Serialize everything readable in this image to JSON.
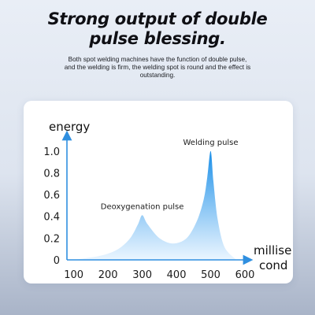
{
  "header": {
    "title_line1": "Strong output of double",
    "title_line2": "pulse blessing.",
    "subtitle_line1": "Both spot welding machines have the function of double pulse,",
    "subtitle_line2": "and the welding is firm, the welding spot is round and the effect is",
    "subtitle_line3": "outstanding."
  },
  "chart_data": {
    "type": "area",
    "ylabel": "energy",
    "xlabel_line1": "millise",
    "xlabel_line2": "cond",
    "x_ticks": [
      "100",
      "200",
      "300",
      "400",
      "500",
      "600"
    ],
    "y_ticks": [
      "0",
      "0.2",
      "0.4",
      "0.6",
      "0.8",
      "1.0"
    ],
    "xlim": [
      80,
      600
    ],
    "ylim": [
      0,
      1.1
    ],
    "grid": false,
    "fill_colors": [
      "#1a8fe8",
      "#e8f4ff"
    ],
    "axis_color": "#2f8fe0",
    "series": [
      {
        "x": [
          100,
          180,
          230,
          265,
          288,
          300,
          315,
          350,
          390,
          430,
          460,
          480,
          490,
          500,
          508,
          520,
          540,
          575
        ],
        "y": [
          0,
          0.04,
          0.1,
          0.2,
          0.33,
          0.41,
          0.33,
          0.2,
          0.15,
          0.2,
          0.36,
          0.56,
          0.76,
          1.0,
          0.72,
          0.38,
          0.12,
          0
        ]
      }
    ],
    "annotations": [
      {
        "text": "Deoxygenation pulse",
        "x": 300,
        "y": 0.41
      },
      {
        "text": "Welding pulse",
        "x": 500,
        "y": 1.0
      }
    ]
  }
}
